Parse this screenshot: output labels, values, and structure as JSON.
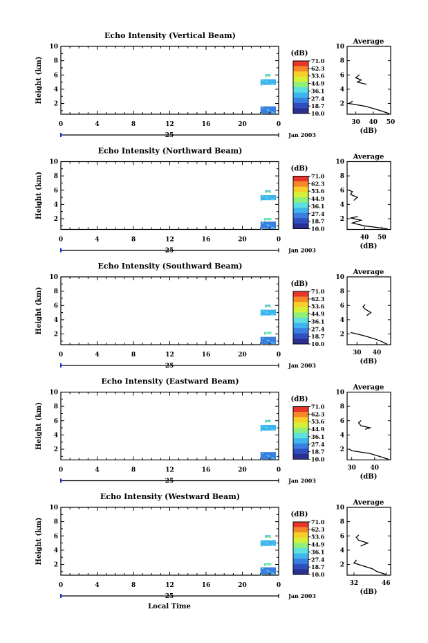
{
  "page": {
    "date_label": "Jan 2003",
    "day_label": "25",
    "xaxis_title": "Local Time"
  },
  "time_ticks": [
    "0",
    "4",
    "8",
    "12",
    "16",
    "20",
    "0"
  ],
  "height_ticks": [
    "2",
    "4",
    "6",
    "8",
    "10"
  ],
  "colorbar": {
    "unit": "(dB)",
    "labels": [
      "71.0",
      "62.3",
      "53.6",
      "44.9",
      "36.1",
      "27.4",
      "18.7",
      "10.0"
    ]
  },
  "chart_data": [
    {
      "type": "heatmap",
      "title": "Echo Intensity (Vertical Beam)",
      "ylabel": "Height (km)",
      "xlabel": "Local Time",
      "ylim": [
        0.5,
        10
      ],
      "xlim_hours": [
        0,
        24
      ],
      "echo_regions": [
        {
          "t0": 22.0,
          "t1": 23.7,
          "h0": 0.6,
          "h1": 1.6,
          "value_db": 27
        },
        {
          "t0": 22.0,
          "t1": 23.7,
          "h0": 4.6,
          "h1": 5.4,
          "value_db": 30
        },
        {
          "t0": 22.5,
          "t1": 23.1,
          "h0": 5.8,
          "h1": 6.1,
          "value_db": 33
        }
      ],
      "average": {
        "title": "Average",
        "xlabel": "(dB)",
        "xticks": [
          "30",
          "40",
          "50"
        ],
        "xlim": [
          25,
          50
        ],
        "profile": [
          {
            "h": 0.6,
            "db": 49
          },
          {
            "h": 1.0,
            "db": 44
          },
          {
            "h": 1.3,
            "db": 40
          },
          {
            "h": 1.6,
            "db": 36
          },
          {
            "h": 2.0,
            "db": 26
          },
          {
            "h": 2.3,
            "db": 28
          },
          {
            "h": 4.7,
            "db": 36
          },
          {
            "h": 5.0,
            "db": 31
          },
          {
            "h": 5.3,
            "db": 33
          },
          {
            "h": 5.6,
            "db": 30
          },
          {
            "h": 6.0,
            "db": 32
          }
        ]
      }
    },
    {
      "type": "heatmap",
      "title": "Echo Intensity (Northward Beam)",
      "ylabel": "Height (km)",
      "xlabel": "Local Time",
      "ylim": [
        0.5,
        10
      ],
      "xlim_hours": [
        0,
        24
      ],
      "echo_regions": [
        {
          "t0": 22.0,
          "t1": 23.7,
          "h0": 0.6,
          "h1": 1.6,
          "value_db": 27
        },
        {
          "t0": 22.0,
          "t1": 23.7,
          "h0": 4.6,
          "h1": 5.3,
          "value_db": 30
        },
        {
          "t0": 22.4,
          "t1": 23.2,
          "h0": 1.8,
          "h1": 2.1,
          "value_db": 36
        },
        {
          "t0": 22.5,
          "t1": 23.1,
          "h0": 5.7,
          "h1": 6.0,
          "value_db": 33
        }
      ],
      "average": {
        "title": "Average",
        "xlabel": "(dB)",
        "xticks": [
          "40",
          "50"
        ],
        "xlim": [
          30,
          55
        ],
        "profile": [
          {
            "h": 0.6,
            "db": 53
          },
          {
            "h": 1.0,
            "db": 40
          },
          {
            "h": 1.4,
            "db": 33
          },
          {
            "h": 1.8,
            "db": 38
          },
          {
            "h": 2.1,
            "db": 32
          },
          {
            "h": 2.3,
            "db": 36
          },
          {
            "h": 4.6,
            "db": 34
          },
          {
            "h": 5.0,
            "db": 36
          },
          {
            "h": 5.4,
            "db": 32
          },
          {
            "h": 5.8,
            "db": 33
          },
          {
            "h": 6.0,
            "db": 31
          }
        ]
      }
    },
    {
      "type": "heatmap",
      "title": "Echo Intensity (Southward Beam)",
      "ylabel": "Height (km)",
      "xlabel": "Local Time",
      "ylim": [
        0.5,
        10
      ],
      "xlim_hours": [
        0,
        24
      ],
      "echo_regions": [
        {
          "t0": 22.0,
          "t1": 23.7,
          "h0": 0.6,
          "h1": 1.6,
          "value_db": 27
        },
        {
          "t0": 22.0,
          "t1": 23.7,
          "h0": 4.6,
          "h1": 5.4,
          "value_db": 30
        },
        {
          "t0": 22.4,
          "t1": 23.2,
          "h0": 2.0,
          "h1": 2.3,
          "value_db": 36
        },
        {
          "t0": 22.5,
          "t1": 23.1,
          "h0": 5.8,
          "h1": 6.1,
          "value_db": 33
        }
      ],
      "average": {
        "title": "Average",
        "xlabel": "(dB)",
        "xticks": [
          "30",
          "40"
        ],
        "xlim": [
          25,
          47
        ],
        "profile": [
          {
            "h": 0.6,
            "db": 45
          },
          {
            "h": 1.0,
            "db": 42
          },
          {
            "h": 1.4,
            "db": 38
          },
          {
            "h": 1.8,
            "db": 33
          },
          {
            "h": 2.2,
            "db": 27
          },
          {
            "h": 4.6,
            "db": 35
          },
          {
            "h": 5.0,
            "db": 37
          },
          {
            "h": 5.5,
            "db": 34
          },
          {
            "h": 5.8,
            "db": 33
          },
          {
            "h": 6.1,
            "db": 34
          }
        ]
      }
    },
    {
      "type": "heatmap",
      "title": "Echo Intensity (Eastward Beam)",
      "ylabel": "Height (km)",
      "xlabel": "Local Time",
      "ylim": [
        0.5,
        10
      ],
      "xlim_hours": [
        0,
        24
      ],
      "echo_regions": [
        {
          "t0": 22.0,
          "t1": 23.7,
          "h0": 0.6,
          "h1": 1.6,
          "value_db": 27
        },
        {
          "t0": 22.0,
          "t1": 23.7,
          "h0": 4.6,
          "h1": 5.4,
          "value_db": 30
        },
        {
          "t0": 22.5,
          "t1": 23.1,
          "h0": 5.8,
          "h1": 6.1,
          "value_db": 33
        }
      ],
      "average": {
        "title": "Average",
        "xlabel": "(dB)",
        "xticks": [
          "30",
          "40"
        ],
        "xlim": [
          28,
          47
        ],
        "profile": [
          {
            "h": 0.6,
            "db": 46
          },
          {
            "h": 1.0,
            "db": 42
          },
          {
            "h": 1.4,
            "db": 38
          },
          {
            "h": 1.8,
            "db": 30
          },
          {
            "h": 2.0,
            "db": 29
          },
          {
            "h": 4.8,
            "db": 36
          },
          {
            "h": 5.0,
            "db": 38
          },
          {
            "h": 5.3,
            "db": 34
          },
          {
            "h": 5.7,
            "db": 33
          },
          {
            "h": 6.0,
            "db": 34
          }
        ]
      }
    },
    {
      "type": "heatmap",
      "title": "Echo Intensity (Westward Beam)",
      "ylabel": "Height (km)",
      "xlabel": "Local Time",
      "ylim": [
        0.5,
        10
      ],
      "xlim_hours": [
        0,
        24
      ],
      "echo_regions": [
        {
          "t0": 22.0,
          "t1": 23.7,
          "h0": 0.6,
          "h1": 1.6,
          "value_db": 27
        },
        {
          "t0": 22.0,
          "t1": 23.7,
          "h0": 4.6,
          "h1": 5.4,
          "value_db": 30
        },
        {
          "t0": 22.4,
          "t1": 23.2,
          "h0": 1.9,
          "h1": 2.2,
          "value_db": 36
        },
        {
          "t0": 22.5,
          "t1": 23.1,
          "h0": 5.8,
          "h1": 6.1,
          "value_db": 33
        }
      ],
      "average": {
        "title": "Average",
        "xlabel": "(dB)",
        "xticks": [
          "32",
          "46"
        ],
        "xlim": [
          29,
          48
        ],
        "profile": [
          {
            "h": 0.6,
            "db": 46
          },
          {
            "h": 1.0,
            "db": 42
          },
          {
            "h": 1.4,
            "db": 40
          },
          {
            "h": 1.8,
            "db": 36
          },
          {
            "h": 2.2,
            "db": 32
          },
          {
            "h": 2.6,
            "db": 33
          },
          {
            "h": 4.6,
            "db": 35
          },
          {
            "h": 5.0,
            "db": 38
          },
          {
            "h": 5.4,
            "db": 34
          },
          {
            "h": 5.8,
            "db": 33
          },
          {
            "h": 6.1,
            "db": 34
          }
        ]
      }
    }
  ]
}
